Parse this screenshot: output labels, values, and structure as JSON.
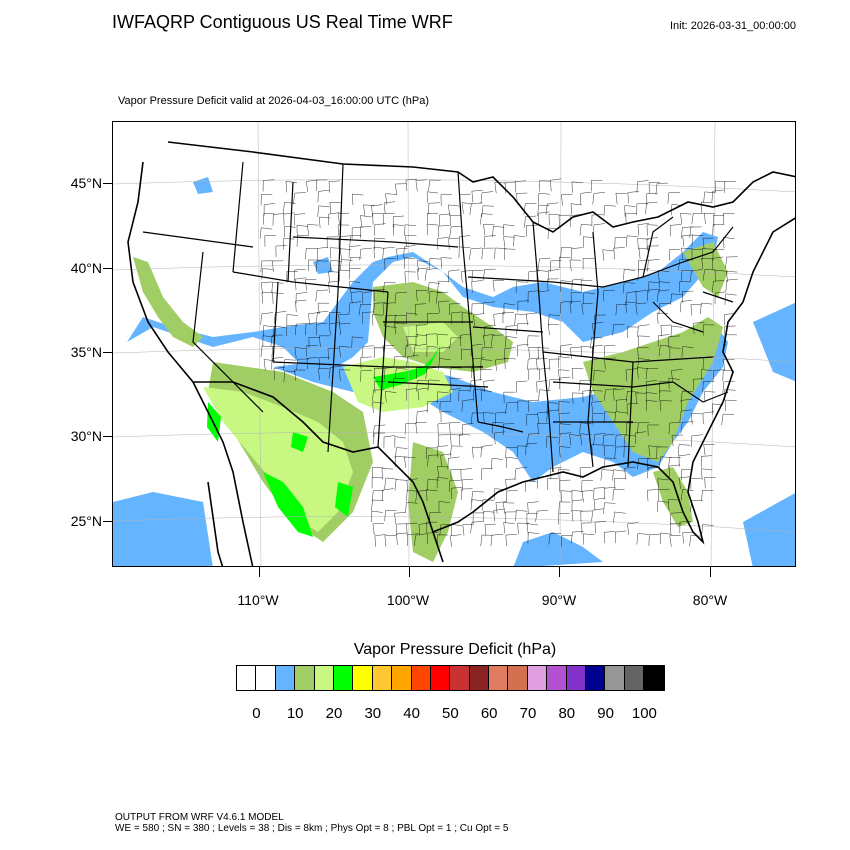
{
  "header": {
    "title": "IWFAQRP Contiguous US Real Time WRF",
    "init": "Init: 2026-03-31_00:00:00",
    "subtitle": "Vapor Pressure Deficit valid at 2026-04-03_16:00:00 UTC   (hPa)"
  },
  "map": {
    "lat_labels": [
      "45°N",
      "40°N",
      "35°N",
      "30°N",
      "25°N"
    ],
    "lon_labels": [
      "110°W",
      "100°W",
      "90°W",
      "80°W"
    ],
    "colors": {
      "water_blue": "#64b4ff",
      "olive": "#a0cd64",
      "light_green": "#c8f782",
      "bright_green": "#00ff00",
      "state_border": "#000000"
    }
  },
  "colorbar": {
    "title": "Vapor Pressure Deficit  (hPa)",
    "colors": [
      "#ffffff",
      "#ffffff",
      "#64b4ff",
      "#a0cd64",
      "#c8f782",
      "#00ff00",
      "#ffff00",
      "#ffc832",
      "#ffa500",
      "#ff4500",
      "#ff0000",
      "#c83232",
      "#8b2323",
      "#e07a60",
      "#d27050",
      "#e0a0e0",
      "#b450d2",
      "#8232c8",
      "#000090",
      "#969696",
      "#646464",
      "#000000"
    ],
    "labels": [
      "0",
      "10",
      "20",
      "30",
      "40",
      "50",
      "60",
      "70",
      "80",
      "90",
      "100"
    ]
  },
  "footer": {
    "line1": "OUTPUT FROM WRF V4.6.1 MODEL",
    "line2": "WE = 580 ; SN = 380 ; Levels = 38 ; Dis = 8km ; Phys Opt = 8 ; PBL Opt = 1 ; Cu Opt = 5"
  }
}
